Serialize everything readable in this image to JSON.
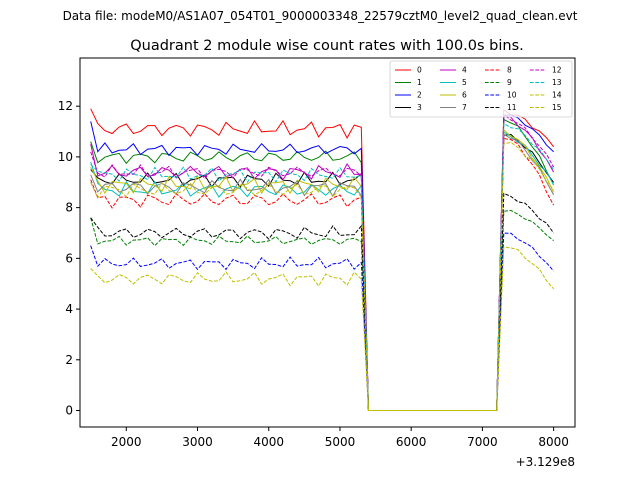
{
  "chart_data": {
    "type": "line",
    "suptitle": "Data file: modeM0/AS1A07_054T01_9000003348_22579cztM0_level2_quad_clean.evt",
    "title": "Quadrant 2 module wise count rates with 100.0s bins.",
    "xlabel": "",
    "ylabel": "",
    "x_offset_label": "+3.129e8",
    "xlim": [
      1350,
      8300
    ],
    "ylim": [
      -0.65,
      13.9
    ],
    "xticks": [
      2000,
      3000,
      4000,
      5000,
      6000,
      7000,
      8000
    ],
    "yticks": [
      0,
      2,
      4,
      6,
      8,
      10,
      12
    ],
    "xtick_labels": [
      "2000",
      "3000",
      "4000",
      "5000",
      "6000",
      "7000",
      "8000"
    ],
    "ytick_labels": [
      "0",
      "2",
      "4",
      "6",
      "8",
      "10",
      "12"
    ],
    "grid": false,
    "legend_placement": "top-right",
    "legend_columns": 4,
    "x": [
      1500,
      1600,
      1700,
      1800,
      1900,
      2000,
      2100,
      2200,
      2300,
      2400,
      2500,
      2600,
      2700,
      2800,
      2900,
      3000,
      3100,
      3200,
      3300,
      3400,
      3500,
      3600,
      3700,
      3800,
      3900,
      4000,
      4100,
      4200,
      4300,
      4400,
      4500,
      4600,
      4700,
      4800,
      4900,
      5000,
      5100,
      5200,
      5300,
      5400,
      5500,
      5600,
      5700,
      5800,
      5900,
      6000,
      6100,
      6200,
      6300,
      6400,
      6500,
      6600,
      6700,
      6800,
      6900,
      7000,
      7100,
      7200,
      7300,
      7400,
      7500,
      7600,
      7700,
      7800,
      7900,
      8000
    ],
    "series": [
      {
        "name": "0",
        "color": "#ff0000",
        "dash": "solid",
        "base": 11.1,
        "start": 11.9,
        "post": 11.8,
        "end": 10.4,
        "amp": 0.35
      },
      {
        "name": "1",
        "color": "#008000",
        "dash": "solid",
        "base": 10.0,
        "start": 10.6,
        "post": 11.5,
        "end": 8.9,
        "amp": 0.3
      },
      {
        "name": "2",
        "color": "#0000ff",
        "dash": "solid",
        "base": 10.3,
        "start": 11.4,
        "post": 11.7,
        "end": 10.2,
        "amp": 0.25
      },
      {
        "name": "3",
        "color": "#000000",
        "dash": "solid",
        "base": 9.1,
        "start": 9.5,
        "post": 10.9,
        "end": 9.0,
        "amp": 0.3
      },
      {
        "name": "4",
        "color": "#bf00bf",
        "dash": "solid",
        "base": 9.4,
        "start": 10.5,
        "post": 11.6,
        "end": 9.4,
        "amp": 0.35
      },
      {
        "name": "5",
        "color": "#00bfbf",
        "dash": "solid",
        "base": 8.7,
        "start": 9.8,
        "post": 10.9,
        "end": 8.9,
        "amp": 0.35
      },
      {
        "name": "6",
        "color": "#bfbf00",
        "dash": "solid",
        "base": 8.9,
        "start": 9.6,
        "post": 11.0,
        "end": 8.6,
        "amp": 0.35
      },
      {
        "name": "7",
        "color": "#808080",
        "dash": "solid",
        "base": 8.8,
        "start": 9.3,
        "post": 10.9,
        "end": 8.5,
        "amp": 0.35
      },
      {
        "name": "8",
        "color": "#ff0000",
        "dash": "dashed",
        "base": 8.3,
        "start": 9.1,
        "post": 10.8,
        "end": 8.1,
        "amp": 0.35
      },
      {
        "name": "9",
        "color": "#008000",
        "dash": "dashed",
        "base": 6.7,
        "start": 7.6,
        "post": 7.9,
        "end": 6.7,
        "amp": 0.2
      },
      {
        "name": "10",
        "color": "#0000ff",
        "dash": "dashed",
        "base": 5.8,
        "start": 6.5,
        "post": 7.0,
        "end": 5.5,
        "amp": 0.25
      },
      {
        "name": "11",
        "color": "#000000",
        "dash": "dashed",
        "base": 7.0,
        "start": 7.6,
        "post": 8.5,
        "end": 7.0,
        "amp": 0.3
      },
      {
        "name": "12",
        "color": "#bf00bf",
        "dash": "dashed",
        "base": 9.4,
        "start": 10.2,
        "post": 11.6,
        "end": 9.6,
        "amp": 0.3
      },
      {
        "name": "13",
        "color": "#00bfbf",
        "dash": "dashed",
        "base": 9.3,
        "start": 9.7,
        "post": 11.3,
        "end": 9.5,
        "amp": 0.3
      },
      {
        "name": "14",
        "color": "#bfbf00",
        "dash": "dashed",
        "base": 5.2,
        "start": 5.6,
        "post": 6.5,
        "end": 4.8,
        "amp": 0.3
      },
      {
        "name": "15",
        "color": "#bfbf00",
        "dash": "dashed",
        "base": 8.7,
        "start": 9.0,
        "post": 10.6,
        "end": 8.7,
        "amp": 0.35
      }
    ],
    "gap": {
      "from": 5400,
      "to": 7200,
      "value": 0
    }
  }
}
